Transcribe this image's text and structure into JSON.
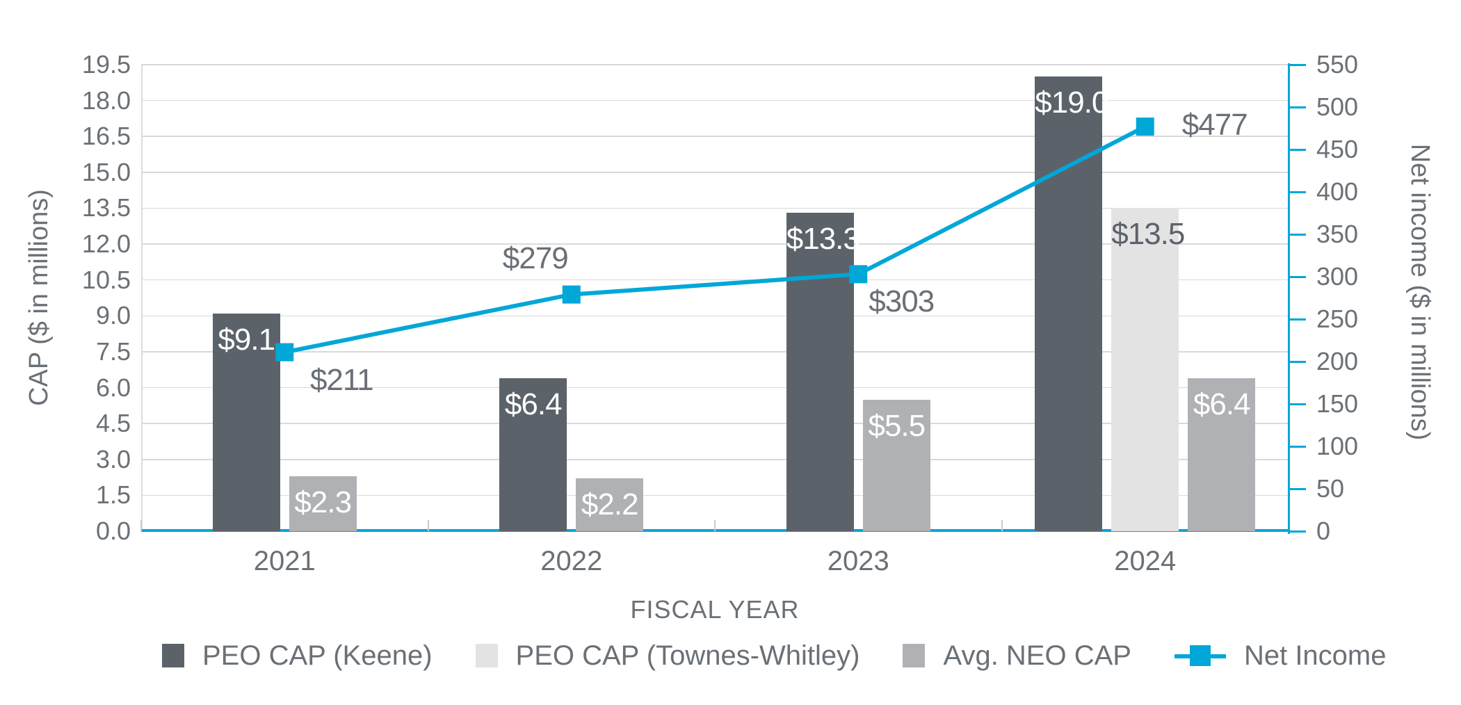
{
  "chart_data": {
    "type": "bar+line",
    "title": "",
    "categories": [
      "2021",
      "2022",
      "2023",
      "2024"
    ],
    "series": [
      {
        "name": "PEO CAP (Keene)",
        "type": "bar",
        "axis": "left",
        "color_key": "peo_keene",
        "label_color_key": "bar_label_light",
        "values": [
          9.1,
          6.4,
          13.3,
          19.0
        ],
        "labels": [
          "$9.1",
          "$6.4",
          "$13.3",
          "$19.0"
        ]
      },
      {
        "name": "PEO CAP (Townes-Whitley)",
        "type": "bar",
        "axis": "left",
        "color_key": "peo_townes",
        "label_color_key": "bar_label_dark",
        "values": [
          null,
          null,
          null,
          13.5
        ],
        "labels": [
          null,
          null,
          null,
          "$13.5"
        ]
      },
      {
        "name": "Avg. NEO CAP",
        "type": "bar",
        "axis": "left",
        "color_key": "avg_neo",
        "label_color_key": "bar_label_light",
        "values": [
          2.3,
          2.2,
          5.5,
          6.4
        ],
        "labels": [
          "$2.3",
          "$2.2",
          "$5.5",
          "$6.4"
        ]
      },
      {
        "name": "Net Income",
        "type": "line",
        "axis": "right",
        "color_key": "net_income",
        "values": [
          211,
          279,
          303,
          477
        ],
        "labels": [
          "$211",
          "$279",
          "$303",
          "$477"
        ],
        "label_offsets": [
          [
            82,
            40
          ],
          [
            -52,
            -52
          ],
          [
            62,
            40
          ],
          [
            100,
            -2
          ]
        ]
      }
    ],
    "left_axis": {
      "title": "CAP ($ in millions)",
      "min": 0,
      "max": 19.5,
      "step": 1.5,
      "ticks": [
        "0.0",
        "1.5",
        "3.0",
        "4.5",
        "6.0",
        "7.5",
        "9.0",
        "10.5",
        "12.0",
        "13.5",
        "15.0",
        "16.5",
        "18.0",
        "19.5"
      ]
    },
    "right_axis": {
      "title": "Net income ($ in millions)",
      "min": 0,
      "max": 550,
      "step": 50,
      "ticks": [
        "0",
        "50",
        "100",
        "150",
        "200",
        "250",
        "300",
        "350",
        "400",
        "450",
        "500",
        "550"
      ]
    },
    "x_axis": {
      "title": "FISCAL YEAR"
    },
    "legend": [
      {
        "label": "PEO CAP (Keene)",
        "swatch": "square",
        "color_key": "peo_keene"
      },
      {
        "label": "PEO CAP (Townes-Whitley)",
        "swatch": "square",
        "color_key": "peo_townes"
      },
      {
        "label": "Avg. NEO CAP",
        "swatch": "square",
        "color_key": "avg_neo"
      },
      {
        "label": "Net Income",
        "swatch": "line-marker",
        "color_key": "net_income"
      }
    ],
    "grid": "horizontal",
    "legend_position": "bottom",
    "colors": {
      "peo_keene": "#5C6269",
      "peo_townes": "#E3E3E4",
      "avg_neo": "#AFB1B4",
      "net_income": "#00A7D7",
      "bar_label_light": "#FFFFFF",
      "bar_label_dark": "#5C6269",
      "text": "#6A7076",
      "grid_line": "#D9D9DA"
    }
  }
}
